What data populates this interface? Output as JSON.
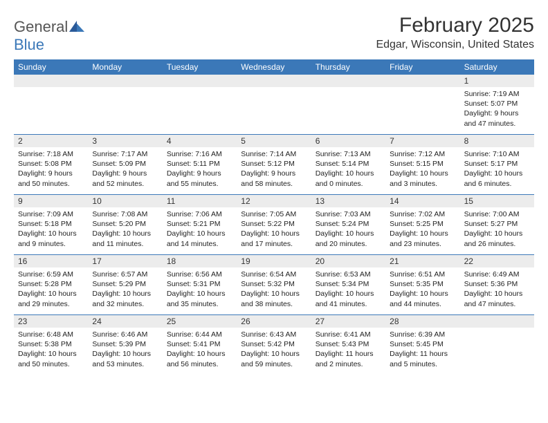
{
  "logo": {
    "text1": "General",
    "text2": "Blue"
  },
  "title": "February 2025",
  "location": "Edgar, Wisconsin, United States",
  "colors": {
    "header_bg": "#3b78b8",
    "header_text": "#ffffff",
    "num_row_bg": "#ececec",
    "divider": "#3b78b8",
    "text": "#222222",
    "logo_gray": "#555555",
    "logo_blue": "#3b78b8"
  },
  "dayNames": [
    "Sunday",
    "Monday",
    "Tuesday",
    "Wednesday",
    "Thursday",
    "Friday",
    "Saturday"
  ],
  "weeks": [
    [
      {
        "num": "",
        "lines": []
      },
      {
        "num": "",
        "lines": []
      },
      {
        "num": "",
        "lines": []
      },
      {
        "num": "",
        "lines": []
      },
      {
        "num": "",
        "lines": []
      },
      {
        "num": "",
        "lines": []
      },
      {
        "num": "1",
        "lines": [
          "Sunrise: 7:19 AM",
          "Sunset: 5:07 PM",
          "Daylight: 9 hours and 47 minutes."
        ]
      }
    ],
    [
      {
        "num": "2",
        "lines": [
          "Sunrise: 7:18 AM",
          "Sunset: 5:08 PM",
          "Daylight: 9 hours and 50 minutes."
        ]
      },
      {
        "num": "3",
        "lines": [
          "Sunrise: 7:17 AM",
          "Sunset: 5:09 PM",
          "Daylight: 9 hours and 52 minutes."
        ]
      },
      {
        "num": "4",
        "lines": [
          "Sunrise: 7:16 AM",
          "Sunset: 5:11 PM",
          "Daylight: 9 hours and 55 minutes."
        ]
      },
      {
        "num": "5",
        "lines": [
          "Sunrise: 7:14 AM",
          "Sunset: 5:12 PM",
          "Daylight: 9 hours and 58 minutes."
        ]
      },
      {
        "num": "6",
        "lines": [
          "Sunrise: 7:13 AM",
          "Sunset: 5:14 PM",
          "Daylight: 10 hours and 0 minutes."
        ]
      },
      {
        "num": "7",
        "lines": [
          "Sunrise: 7:12 AM",
          "Sunset: 5:15 PM",
          "Daylight: 10 hours and 3 minutes."
        ]
      },
      {
        "num": "8",
        "lines": [
          "Sunrise: 7:10 AM",
          "Sunset: 5:17 PM",
          "Daylight: 10 hours and 6 minutes."
        ]
      }
    ],
    [
      {
        "num": "9",
        "lines": [
          "Sunrise: 7:09 AM",
          "Sunset: 5:18 PM",
          "Daylight: 10 hours and 9 minutes."
        ]
      },
      {
        "num": "10",
        "lines": [
          "Sunrise: 7:08 AM",
          "Sunset: 5:20 PM",
          "Daylight: 10 hours and 11 minutes."
        ]
      },
      {
        "num": "11",
        "lines": [
          "Sunrise: 7:06 AM",
          "Sunset: 5:21 PM",
          "Daylight: 10 hours and 14 minutes."
        ]
      },
      {
        "num": "12",
        "lines": [
          "Sunrise: 7:05 AM",
          "Sunset: 5:22 PM",
          "Daylight: 10 hours and 17 minutes."
        ]
      },
      {
        "num": "13",
        "lines": [
          "Sunrise: 7:03 AM",
          "Sunset: 5:24 PM",
          "Daylight: 10 hours and 20 minutes."
        ]
      },
      {
        "num": "14",
        "lines": [
          "Sunrise: 7:02 AM",
          "Sunset: 5:25 PM",
          "Daylight: 10 hours and 23 minutes."
        ]
      },
      {
        "num": "15",
        "lines": [
          "Sunrise: 7:00 AM",
          "Sunset: 5:27 PM",
          "Daylight: 10 hours and 26 minutes."
        ]
      }
    ],
    [
      {
        "num": "16",
        "lines": [
          "Sunrise: 6:59 AM",
          "Sunset: 5:28 PM",
          "Daylight: 10 hours and 29 minutes."
        ]
      },
      {
        "num": "17",
        "lines": [
          "Sunrise: 6:57 AM",
          "Sunset: 5:29 PM",
          "Daylight: 10 hours and 32 minutes."
        ]
      },
      {
        "num": "18",
        "lines": [
          "Sunrise: 6:56 AM",
          "Sunset: 5:31 PM",
          "Daylight: 10 hours and 35 minutes."
        ]
      },
      {
        "num": "19",
        "lines": [
          "Sunrise: 6:54 AM",
          "Sunset: 5:32 PM",
          "Daylight: 10 hours and 38 minutes."
        ]
      },
      {
        "num": "20",
        "lines": [
          "Sunrise: 6:53 AM",
          "Sunset: 5:34 PM",
          "Daylight: 10 hours and 41 minutes."
        ]
      },
      {
        "num": "21",
        "lines": [
          "Sunrise: 6:51 AM",
          "Sunset: 5:35 PM",
          "Daylight: 10 hours and 44 minutes."
        ]
      },
      {
        "num": "22",
        "lines": [
          "Sunrise: 6:49 AM",
          "Sunset: 5:36 PM",
          "Daylight: 10 hours and 47 minutes."
        ]
      }
    ],
    [
      {
        "num": "23",
        "lines": [
          "Sunrise: 6:48 AM",
          "Sunset: 5:38 PM",
          "Daylight: 10 hours and 50 minutes."
        ]
      },
      {
        "num": "24",
        "lines": [
          "Sunrise: 6:46 AM",
          "Sunset: 5:39 PM",
          "Daylight: 10 hours and 53 minutes."
        ]
      },
      {
        "num": "25",
        "lines": [
          "Sunrise: 6:44 AM",
          "Sunset: 5:41 PM",
          "Daylight: 10 hours and 56 minutes."
        ]
      },
      {
        "num": "26",
        "lines": [
          "Sunrise: 6:43 AM",
          "Sunset: 5:42 PM",
          "Daylight: 10 hours and 59 minutes."
        ]
      },
      {
        "num": "27",
        "lines": [
          "Sunrise: 6:41 AM",
          "Sunset: 5:43 PM",
          "Daylight: 11 hours and 2 minutes."
        ]
      },
      {
        "num": "28",
        "lines": [
          "Sunrise: 6:39 AM",
          "Sunset: 5:45 PM",
          "Daylight: 11 hours and 5 minutes."
        ]
      },
      {
        "num": "",
        "lines": []
      }
    ]
  ]
}
